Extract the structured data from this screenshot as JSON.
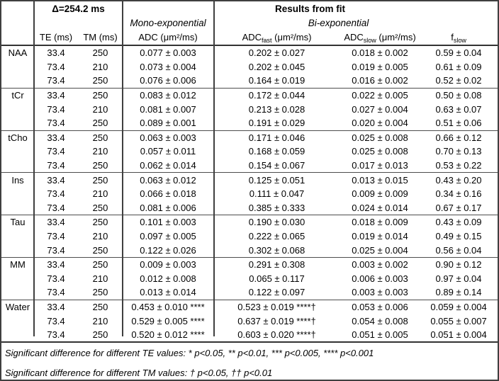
{
  "table": {
    "delta_header": "Δ=254.2 ms",
    "results_header": "Results from fit",
    "mono_header": "Mono-exponential",
    "bi_header": "Bi-exponential",
    "col_headers": {
      "te": "TE (ms)",
      "tm": "TM (ms)",
      "adc": "ADC (μm²/ms)",
      "adc_fast_base": "ADC",
      "adc_fast_sub": "fast",
      "adc_fast_unit": " (μm²/ms)",
      "adc_slow_base": "ADC",
      "adc_slow_sub": "slow",
      "adc_slow_unit": " (μm²/ms)",
      "f_slow_base": "f",
      "f_slow_sub": "slow"
    },
    "groups": [
      {
        "name": "NAA",
        "rows": [
          {
            "te": "33.4",
            "tm": "250",
            "adc": "0.077 ± 0.003",
            "adc_fast": "0.202 ± 0.027",
            "adc_slow": "0.018 ± 0.002",
            "f_slow": "0.59 ± 0.04"
          },
          {
            "te": "73.4",
            "tm": "210",
            "adc": "0.073 ± 0.004",
            "adc_fast": "0.202 ± 0.045",
            "adc_slow": "0.019 ± 0.005",
            "f_slow": "0.61 ± 0.09"
          },
          {
            "te": "73.4",
            "tm": "250",
            "adc": "0.076 ± 0.006",
            "adc_fast": "0.164 ± 0.019",
            "adc_slow": "0.016 ± 0.002",
            "f_slow": "0.52 ± 0.02"
          }
        ]
      },
      {
        "name": "tCr",
        "rows": [
          {
            "te": "33.4",
            "tm": "250",
            "adc": "0.083 ± 0.012",
            "adc_fast": "0.172 ± 0.044",
            "adc_slow": "0.022 ± 0.005",
            "f_slow": "0.50 ± 0.08"
          },
          {
            "te": "73.4",
            "tm": "210",
            "adc": "0.081 ± 0.007",
            "adc_fast": "0.213 ± 0.028",
            "adc_slow": "0.027 ± 0.004",
            "f_slow": "0.63 ± 0.07"
          },
          {
            "te": "73.4",
            "tm": "250",
            "adc": "0.089 ± 0.001",
            "adc_fast": "0.191 ± 0.029",
            "adc_slow": "0.020 ± 0.004",
            "f_slow": "0.51 ± 0.06"
          }
        ]
      },
      {
        "name": "tCho",
        "rows": [
          {
            "te": "33.4",
            "tm": "250",
            "adc": "0.063 ± 0.003",
            "adc_fast": "0.171 ± 0.046",
            "adc_slow": "0.025 ± 0.008",
            "f_slow": "0.66 ± 0.12"
          },
          {
            "te": "73.4",
            "tm": "210",
            "adc": "0.057 ± 0.011",
            "adc_fast": "0.168 ± 0.059",
            "adc_slow": "0.025 ± 0.008",
            "f_slow": "0.70 ± 0.13"
          },
          {
            "te": "73.4",
            "tm": "250",
            "adc": "0.062 ± 0.014",
            "adc_fast": "0.154 ± 0.067",
            "adc_slow": "0.017 ± 0.013",
            "f_slow": "0.53 ± 0.22"
          }
        ]
      },
      {
        "name": "Ins",
        "rows": [
          {
            "te": "33.4",
            "tm": "250",
            "adc": "0.063 ± 0.012",
            "adc_fast": "0.125 ± 0.051",
            "adc_slow": "0.013 ± 0.015",
            "f_slow": "0.43 ± 0.20"
          },
          {
            "te": "73.4",
            "tm": "210",
            "adc": "0.066 ± 0.018",
            "adc_fast": "0.111 ± 0.047",
            "adc_slow": "0.009 ± 0.009",
            "f_slow": "0.34 ± 0.16"
          },
          {
            "te": "73.4",
            "tm": "250",
            "adc": "0.081 ± 0.006",
            "adc_fast": "0.385 ± 0.333",
            "adc_slow": "0.024 ± 0.014",
            "f_slow": "0.67 ± 0.17"
          }
        ]
      },
      {
        "name": "Tau",
        "rows": [
          {
            "te": "33.4",
            "tm": "250",
            "adc": "0.101 ± 0.003",
            "adc_fast": "0.190 ± 0.030",
            "adc_slow": "0.018 ± 0.009",
            "f_slow": "0.43 ± 0.09"
          },
          {
            "te": "73.4",
            "tm": "210",
            "adc": "0.097 ± 0.005",
            "adc_fast": "0.222 ± 0.065",
            "adc_slow": "0.019 ± 0.014",
            "f_slow": "0.49 ± 0.15"
          },
          {
            "te": "73.4",
            "tm": "250",
            "adc": "0.122 ± 0.026",
            "adc_fast": "0.302 ± 0.068",
            "adc_slow": "0.025 ± 0.004",
            "f_slow": "0.56 ± 0.04"
          }
        ]
      },
      {
        "name": "MM",
        "rows": [
          {
            "te": "33.4",
            "tm": "250",
            "adc": "0.009 ± 0.003",
            "adc_fast": "0.291 ± 0.308",
            "adc_slow": "0.003 ± 0.002",
            "f_slow": "0.90 ± 0.12"
          },
          {
            "te": "73.4",
            "tm": "210",
            "adc": "0.012 ± 0.008",
            "adc_fast": "0.065 ± 0.117",
            "adc_slow": "0.006 ± 0.003",
            "f_slow": "0.97 ± 0.04"
          },
          {
            "te": "73.4",
            "tm": "250",
            "adc": "0.013 ± 0.014",
            "adc_fast": "0.122 ± 0.097",
            "adc_slow": "0.003 ± 0.003",
            "f_slow": "0.89 ± 0.14"
          }
        ]
      },
      {
        "name": "Water",
        "rows": [
          {
            "te": "33.4",
            "tm": "250",
            "adc": "0.453 ± 0.010 ****",
            "adc_fast": "0.523 ± 0.019 ****†",
            "adc_slow": "0.053 ± 0.006",
            "f_slow": "0.059 ± 0.004"
          },
          {
            "te": "73.4",
            "tm": "210",
            "adc": "0.529 ± 0.005 ****",
            "adc_fast": "0.637 ± 0.019 ****†",
            "adc_slow": "0.054 ± 0.008",
            "f_slow": "0.055 ± 0.007"
          },
          {
            "te": "73.4",
            "tm": "250",
            "adc": "0.520 ± 0.012 ****",
            "adc_fast": "0.603 ± 0.020 ****†",
            "adc_slow": "0.051 ± 0.005",
            "f_slow": "0.051 ± 0.004"
          }
        ]
      }
    ],
    "footnotes": [
      "Significant difference for different TE values: * p<0.05, ** p<0.01, *** p<0.005, **** p<0.001",
      "Significant difference for different TM values: † p<0.05, †† p<0.01"
    ],
    "colors": {
      "background": "#ffffff",
      "text": "#000000",
      "border_outer": "#3f3f3f",
      "border_header": "#333333",
      "border_group": "#4d4d4d"
    }
  }
}
